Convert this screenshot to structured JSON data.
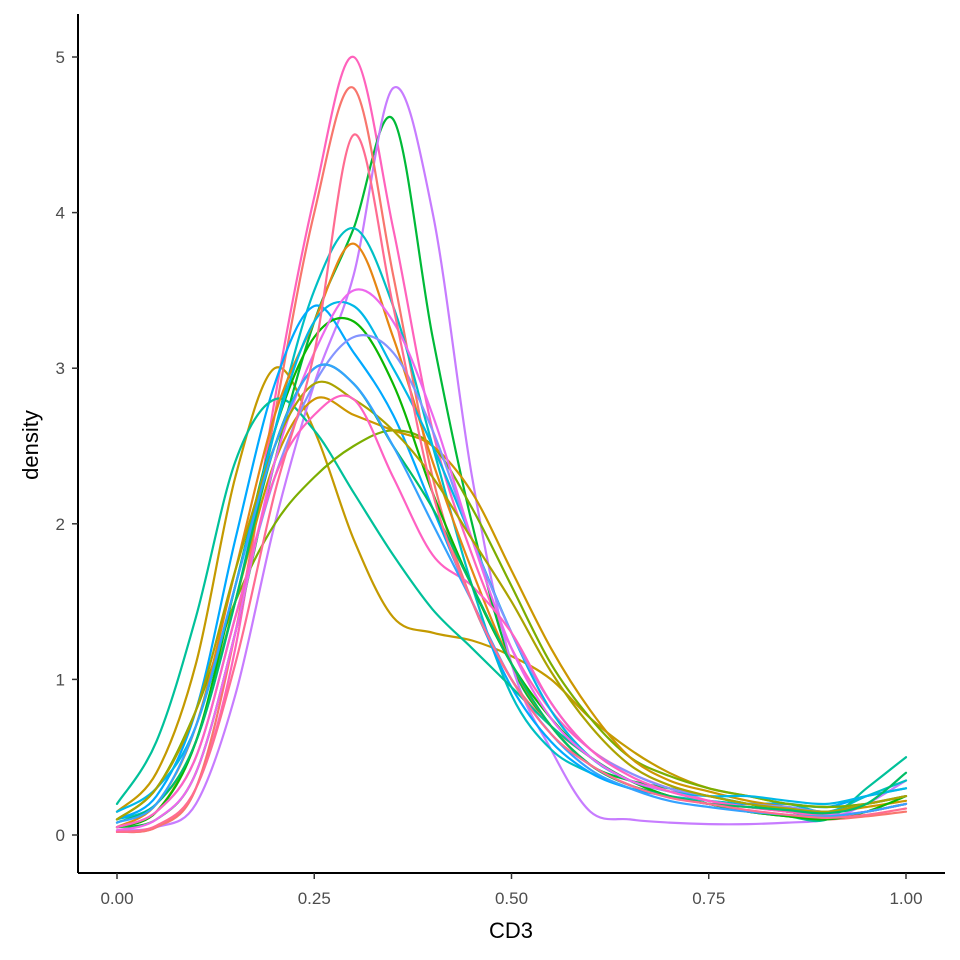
{
  "chart_data": {
    "type": "line",
    "title": "",
    "xlabel": "CD3",
    "ylabel": "density",
    "xlim": [
      -0.05,
      1.05
    ],
    "ylim": [
      -0.25,
      5.25
    ],
    "x_ticks": [
      0.0,
      0.25,
      0.5,
      0.75,
      1.0
    ],
    "x_tick_labels": [
      "0.00",
      "0.25",
      "0.50",
      "0.75",
      "1.00"
    ],
    "y_ticks": [
      0,
      1,
      2,
      3,
      4,
      5
    ],
    "y_tick_labels": [
      "0",
      "1",
      "2",
      "3",
      "4",
      "5"
    ],
    "grid": false,
    "legend": "none",
    "x": [
      0.0,
      0.05,
      0.1,
      0.15,
      0.2,
      0.25,
      0.3,
      0.35,
      0.4,
      0.45,
      0.5,
      0.55,
      0.6,
      0.65,
      0.7,
      0.75,
      0.8,
      0.85,
      0.9,
      0.95,
      1.0
    ],
    "series": [
      {
        "color": "#C49A00",
        "values": [
          0.15,
          0.4,
          1.1,
          2.3,
          3.0,
          2.6,
          1.9,
          1.4,
          1.3,
          1.25,
          1.15,
          1.0,
          0.75,
          0.55,
          0.4,
          0.3,
          0.25,
          0.2,
          0.18,
          0.2,
          0.25
        ]
      },
      {
        "color": "#FF62BC",
        "values": [
          0.02,
          0.05,
          0.3,
          1.2,
          2.8,
          4.1,
          5.0,
          3.9,
          2.6,
          1.8,
          1.2,
          0.8,
          0.55,
          0.4,
          0.3,
          0.22,
          0.18,
          0.15,
          0.12,
          0.15,
          0.2
        ]
      },
      {
        "color": "#00BA38",
        "values": [
          0.05,
          0.1,
          0.4,
          1.3,
          2.4,
          3.3,
          3.9,
          4.6,
          3.2,
          2.0,
          1.1,
          0.7,
          0.45,
          0.35,
          0.3,
          0.25,
          0.2,
          0.15,
          0.12,
          0.15,
          0.2
        ]
      },
      {
        "color": "#C77CFF",
        "values": [
          0.03,
          0.05,
          0.2,
          0.9,
          2.0,
          2.9,
          3.6,
          4.8,
          4.0,
          2.3,
          1.1,
          0.55,
          0.15,
          0.1,
          0.08,
          0.07,
          0.07,
          0.08,
          0.1,
          0.2,
          0.35
        ]
      },
      {
        "color": "#F8766D",
        "values": [
          0.02,
          0.05,
          0.3,
          1.3,
          2.7,
          4.0,
          4.8,
          3.6,
          2.3,
          1.5,
          1.0,
          0.7,
          0.5,
          0.35,
          0.25,
          0.2,
          0.15,
          0.12,
          0.1,
          0.12,
          0.15
        ]
      },
      {
        "color": "#00BFC4",
        "values": [
          0.1,
          0.2,
          0.6,
          1.5,
          2.6,
          3.5,
          3.9,
          3.4,
          2.5,
          1.6,
          0.9,
          0.55,
          0.4,
          0.3,
          0.25,
          0.22,
          0.2,
          0.2,
          0.15,
          0.25,
          0.35
        ]
      },
      {
        "color": "#00A9FF",
        "values": [
          0.1,
          0.25,
          0.8,
          1.9,
          2.9,
          3.4,
          3.1,
          2.7,
          2.1,
          1.5,
          0.95,
          0.6,
          0.4,
          0.3,
          0.25,
          0.2,
          0.2,
          0.2,
          0.18,
          0.25,
          0.3
        ]
      },
      {
        "color": "#00C19A",
        "values": [
          0.2,
          0.6,
          1.4,
          2.4,
          2.8,
          2.6,
          2.2,
          1.8,
          1.45,
          1.2,
          0.95,
          0.7,
          0.5,
          0.35,
          0.25,
          0.2,
          0.15,
          0.12,
          0.1,
          0.3,
          0.5
        ]
      },
      {
        "color": "#7CAE00",
        "values": [
          0.1,
          0.3,
          0.8,
          1.5,
          2.0,
          2.3,
          2.5,
          2.6,
          2.5,
          2.1,
          1.6,
          1.1,
          0.75,
          0.5,
          0.38,
          0.3,
          0.25,
          0.2,
          0.18,
          0.2,
          0.25
        ]
      },
      {
        "color": "#CD9600",
        "values": [
          0.05,
          0.15,
          0.6,
          1.5,
          2.4,
          2.8,
          2.7,
          2.6,
          2.5,
          2.2,
          1.7,
          1.2,
          0.8,
          0.5,
          0.35,
          0.28,
          0.22,
          0.18,
          0.15,
          0.18,
          0.22
        ]
      },
      {
        "color": "#E68613",
        "values": [
          0.05,
          0.2,
          0.7,
          1.7,
          2.7,
          3.3,
          3.8,
          3.2,
          2.4,
          1.7,
          1.1,
          0.7,
          0.45,
          0.32,
          0.25,
          0.2,
          0.18,
          0.15,
          0.12,
          0.15,
          0.2
        ]
      },
      {
        "color": "#0CB702",
        "values": [
          0.05,
          0.15,
          0.6,
          1.6,
          2.6,
          3.2,
          3.3,
          2.9,
          2.2,
          1.6,
          1.1,
          0.75,
          0.5,
          0.35,
          0.25,
          0.2,
          0.15,
          0.12,
          0.1,
          0.15,
          0.25
        ]
      },
      {
        "color": "#00B8E7",
        "values": [
          0.15,
          0.3,
          0.7,
          1.6,
          2.6,
          3.3,
          3.4,
          3.0,
          2.5,
          1.9,
          1.3,
          0.8,
          0.5,
          0.35,
          0.28,
          0.25,
          0.25,
          0.22,
          0.2,
          0.25,
          0.3
        ]
      },
      {
        "color": "#8494FF",
        "values": [
          0.05,
          0.15,
          0.5,
          1.4,
          2.3,
          2.9,
          3.2,
          3.1,
          2.6,
          1.9,
          1.3,
          0.85,
          0.55,
          0.4,
          0.3,
          0.25,
          0.2,
          0.18,
          0.15,
          0.2,
          0.25
        ]
      },
      {
        "color": "#ED68ED",
        "values": [
          0.03,
          0.1,
          0.4,
          1.3,
          2.4,
          3.1,
          3.5,
          3.3,
          2.7,
          1.9,
          1.2,
          0.75,
          0.5,
          0.35,
          0.28,
          0.22,
          0.18,
          0.15,
          0.13,
          0.15,
          0.2
        ]
      },
      {
        "color": "#ABA300",
        "values": [
          0.1,
          0.3,
          0.8,
          1.7,
          2.5,
          2.9,
          2.8,
          2.6,
          2.3,
          1.9,
          1.5,
          1.05,
          0.7,
          0.45,
          0.32,
          0.25,
          0.2,
          0.17,
          0.15,
          0.2,
          0.25
        ]
      },
      {
        "color": "#FF61C3",
        "values": [
          0.05,
          0.15,
          0.5,
          1.4,
          2.3,
          2.7,
          2.8,
          2.3,
          1.8,
          1.6,
          1.3,
          0.85,
          0.55,
          0.38,
          0.28,
          0.22,
          0.18,
          0.15,
          0.12,
          0.15,
          0.2
        ]
      },
      {
        "color": "#00BE67",
        "values": [
          0.08,
          0.2,
          0.6,
          1.5,
          2.5,
          3.0,
          2.9,
          2.5,
          2.1,
          1.6,
          1.1,
          0.7,
          0.45,
          0.32,
          0.25,
          0.2,
          0.18,
          0.16,
          0.14,
          0.2,
          0.4
        ]
      },
      {
        "color": "#35A2FF",
        "values": [
          0.08,
          0.2,
          0.7,
          1.6,
          2.5,
          3.0,
          2.9,
          2.5,
          2.0,
          1.5,
          1.0,
          0.65,
          0.42,
          0.3,
          0.22,
          0.18,
          0.15,
          0.13,
          0.12,
          0.15,
          0.2
        ]
      },
      {
        "color": "#FF6C91",
        "values": [
          0.02,
          0.06,
          0.3,
          1.1,
          2.2,
          3.1,
          4.5,
          3.4,
          2.2,
          1.5,
          1.0,
          0.65,
          0.45,
          0.32,
          0.24,
          0.2,
          0.16,
          0.13,
          0.11,
          0.13,
          0.17
        ]
      }
    ]
  }
}
